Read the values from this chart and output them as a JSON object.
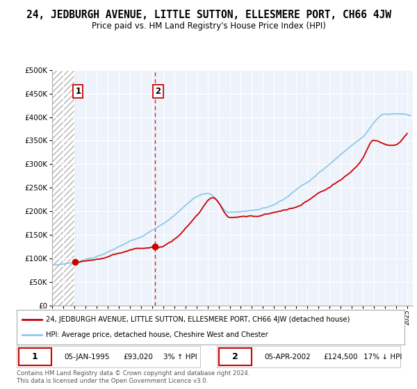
{
  "title": "24, JEDBURGH AVENUE, LITTLE SUTTON, ELLESMERE PORT, CH66 4JW",
  "subtitle": "Price paid vs. HM Land Registry's House Price Index (HPI)",
  "legend_line1": "24, JEDBURGH AVENUE, LITTLE SUTTON, ELLESMERE PORT, CH66 4JW (detached house)",
  "legend_line2": "HPI: Average price, detached house, Cheshire West and Chester",
  "transaction1_date": "05-JAN-1995",
  "transaction1_price": "£93,020",
  "transaction1_hpi": "3% ↑ HPI",
  "transaction2_date": "05-APR-2002",
  "transaction2_price": "£124,500",
  "transaction2_hpi": "17% ↓ HPI",
  "footer": "Contains HM Land Registry data © Crown copyright and database right 2024.\nThis data is licensed under the Open Government Licence v3.0.",
  "sale1_year": 1995.04,
  "sale1_price": 93020,
  "sale2_year": 2002.25,
  "sale2_price": 124500,
  "hpi_color": "#8ec8e8",
  "price_color": "#cc0000",
  "background_color": "#ffffff",
  "plot_bg_color": "#eef3fb",
  "ylim": [
    0,
    500000
  ],
  "xlim_start": 1993.0,
  "xlim_end": 2025.5,
  "title_fontsize": 10.5,
  "subtitle_fontsize": 8.5
}
